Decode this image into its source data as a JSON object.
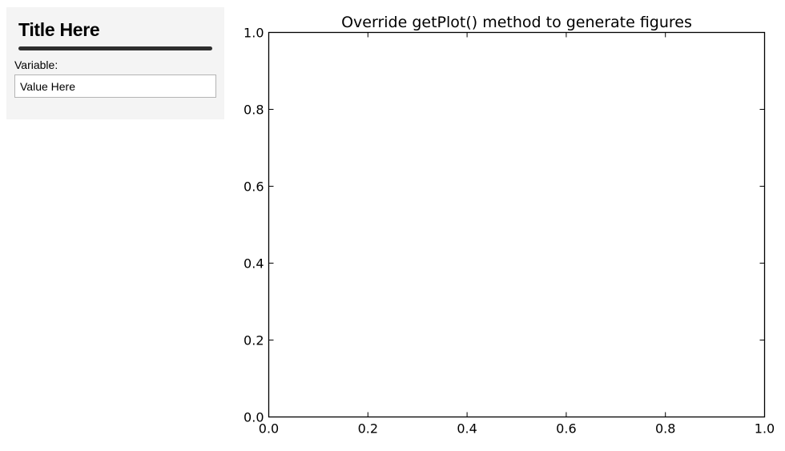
{
  "sidebar": {
    "title": "Title Here",
    "variable_label": "Variable:",
    "variable_value": "Value Here"
  },
  "chart_data": {
    "type": "line",
    "title": "Override getPlot() method to generate figures",
    "xlabel": "",
    "ylabel": "",
    "xlim": [
      0.0,
      1.0
    ],
    "ylim": [
      0.0,
      1.0
    ],
    "xticks": [
      "0.0",
      "0.2",
      "0.4",
      "0.6",
      "0.8",
      "1.0"
    ],
    "yticks": [
      "0.0",
      "0.2",
      "0.4",
      "0.6",
      "0.8",
      "1.0"
    ],
    "series": [],
    "grid": false
  }
}
